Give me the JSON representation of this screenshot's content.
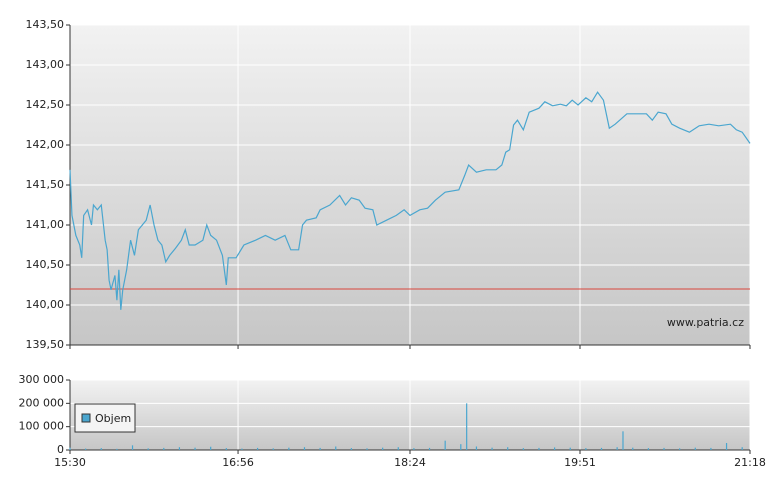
{
  "chart_data": [
    {
      "type": "line",
      "x": [
        0,
        1,
        3,
        5,
        6,
        7,
        9,
        11,
        12,
        14,
        16,
        18,
        19,
        20,
        21,
        23,
        24,
        25,
        26,
        27,
        29,
        31,
        33,
        35,
        37,
        39,
        41,
        43,
        45,
        47,
        49,
        51,
        54,
        57,
        59,
        61,
        64,
        68,
        70,
        72,
        75,
        78,
        80,
        81,
        85,
        89,
        95,
        100,
        105,
        110,
        113,
        117,
        119,
        121,
        126,
        128,
        133,
        138,
        141,
        144,
        148,
        151,
        155,
        157,
        162,
        167,
        171,
        174,
        179,
        183,
        187,
        192,
        199,
        202,
        204,
        208,
        213,
        218,
        221,
        223,
        225,
        227,
        229,
        232,
        235,
        240,
        243,
        247,
        251,
        254,
        257,
        260,
        264,
        267,
        270,
        273,
        276,
        279,
        285,
        290,
        295,
        298,
        301,
        305,
        308,
        312,
        317,
        322,
        327,
        332,
        338,
        341,
        344,
        348
      ],
      "series": [
        {
          "color": "#4aa6cf",
          "values": [
            141.69,
            141.12,
            140.87,
            140.75,
            140.59,
            141.12,
            141.19,
            141.0,
            141.25,
            141.19,
            141.25,
            140.81,
            140.69,
            140.31,
            140.19,
            140.37,
            140.06,
            140.44,
            139.94,
            140.19,
            140.44,
            140.81,
            140.62,
            140.94,
            141.0,
            141.06,
            141.25,
            141.0,
            140.81,
            140.75,
            140.54,
            140.62,
            140.71,
            140.81,
            140.94,
            140.75,
            140.75,
            140.81,
            141.0,
            140.87,
            140.81,
            140.62,
            140.25,
            140.59,
            140.59,
            140.75,
            140.81,
            140.87,
            140.81,
            140.87,
            140.69,
            140.69,
            141.0,
            141.06,
            141.09,
            141.19,
            141.25,
            141.37,
            141.25,
            141.34,
            141.31,
            141.21,
            141.19,
            141.0,
            141.06,
            141.12,
            141.19,
            141.12,
            141.19,
            141.21,
            141.31,
            141.41,
            141.44,
            141.62,
            141.75,
            141.66,
            141.69,
            141.69,
            141.75,
            141.91,
            141.94,
            142.25,
            142.31,
            142.19,
            142.41,
            142.46,
            142.54,
            142.49,
            142.51,
            142.49,
            142.56,
            142.5,
            142.59,
            142.54,
            142.66,
            142.56,
            142.21,
            142.26,
            142.39,
            142.39,
            142.39,
            142.31,
            142.41,
            142.39,
            142.26,
            142.21,
            142.16,
            142.24,
            142.26,
            142.24,
            142.26,
            142.19,
            142.16,
            142.02
          ]
        }
      ],
      "reference_line": {
        "value": 140.2,
        "color": "#d9463c"
      },
      "xlim": [
        0,
        348
      ],
      "ylim": [
        139.5,
        143.5
      ],
      "yticks": [
        {
          "value": 139.5,
          "label": "139,50"
        },
        {
          "value": 140,
          "label": "140,00"
        },
        {
          "value": 140.5,
          "label": "140,50"
        },
        {
          "value": 141,
          "label": "141,00"
        },
        {
          "value": 141.5,
          "label": "141,50"
        },
        {
          "value": 142,
          "label": "142,00"
        },
        {
          "value": 142.5,
          "label": "142,50"
        },
        {
          "value": 143,
          "label": "143,00"
        },
        {
          "value": 143.5,
          "label": "143,50"
        }
      ],
      "grid": true,
      "watermark": "www.patria.cz"
    },
    {
      "type": "bar",
      "x": [
        0,
        8,
        16,
        24,
        32,
        40,
        48,
        56,
        64,
        72,
        80,
        88,
        96,
        104,
        112,
        120,
        128,
        136,
        144,
        152,
        160,
        168,
        176,
        184,
        192,
        200,
        203,
        208,
        216,
        224,
        232,
        240,
        248,
        256,
        264,
        272,
        280,
        283,
        288,
        296,
        304,
        312,
        320,
        328,
        336,
        344
      ],
      "series": [
        {
          "name": "Objem",
          "color": "#4aa6cf",
          "values": [
            10000,
            6000,
            8000,
            5000,
            20000,
            7000,
            9000,
            12000,
            10000,
            14000,
            8000,
            6000,
            9000,
            7000,
            10000,
            12000,
            9000,
            15000,
            8000,
            7000,
            10000,
            12000,
            8000,
            9000,
            40000,
            25000,
            200000,
            15000,
            10000,
            12000,
            8000,
            9000,
            11000,
            10000,
            8000,
            9000,
            12000,
            80000,
            10000,
            8000,
            9000,
            7000,
            10000,
            9000,
            30000,
            12000
          ]
        }
      ],
      "xlim": [
        0,
        348
      ],
      "xticks": [
        {
          "value": 0,
          "label": "15:30"
        },
        {
          "value": 86,
          "label": "16:56"
        },
        {
          "value": 174,
          "label": "18:24"
        },
        {
          "value": 261,
          "label": "19:51"
        },
        {
          "value": 348,
          "label": "21:18"
        }
      ],
      "ylim": [
        0,
        300000
      ],
      "yticks": [
        {
          "value": 0,
          "label": "0"
        },
        {
          "value": 100000,
          "label": "100 000"
        },
        {
          "value": 200000,
          "label": "200 000"
        },
        {
          "value": 300000,
          "label": "300 000"
        }
      ],
      "grid": true,
      "legend": "upper-left"
    }
  ]
}
